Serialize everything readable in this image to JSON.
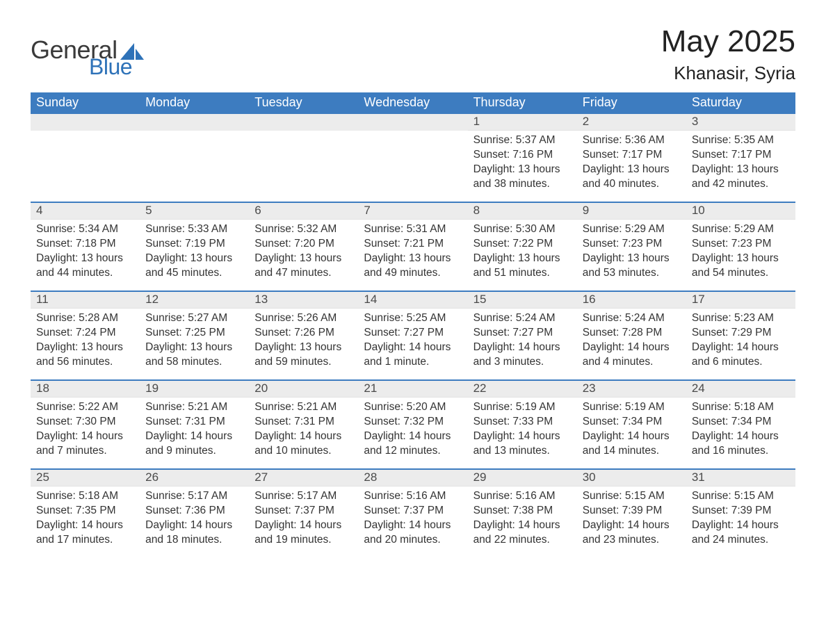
{
  "brand": {
    "word1": "General",
    "word2": "Blue",
    "text_color": "#3a3a3a",
    "accent_color": "#2e72b8"
  },
  "title": "May 2025",
  "location": "Khanasir, Syria",
  "colors": {
    "header_bg": "#3d7cc0",
    "header_text": "#ffffff",
    "daynum_bg": "#ececec",
    "daynum_text": "#4a4a4a",
    "body_text": "#333333",
    "week_divider": "#3d7cc0",
    "page_bg": "#ffffff"
  },
  "fonts": {
    "title_size_pt": 33,
    "location_size_pt": 20,
    "dow_size_pt": 14,
    "body_size_pt": 12
  },
  "days_of_week": [
    "Sunday",
    "Monday",
    "Tuesday",
    "Wednesday",
    "Thursday",
    "Friday",
    "Saturday"
  ],
  "weeks": [
    [
      null,
      null,
      null,
      null,
      {
        "n": "1",
        "sunrise": "Sunrise: 5:37 AM",
        "sunset": "Sunset: 7:16 PM",
        "daylight": "Daylight: 13 hours and 38 minutes."
      },
      {
        "n": "2",
        "sunrise": "Sunrise: 5:36 AM",
        "sunset": "Sunset: 7:17 PM",
        "daylight": "Daylight: 13 hours and 40 minutes."
      },
      {
        "n": "3",
        "sunrise": "Sunrise: 5:35 AM",
        "sunset": "Sunset: 7:17 PM",
        "daylight": "Daylight: 13 hours and 42 minutes."
      }
    ],
    [
      {
        "n": "4",
        "sunrise": "Sunrise: 5:34 AM",
        "sunset": "Sunset: 7:18 PM",
        "daylight": "Daylight: 13 hours and 44 minutes."
      },
      {
        "n": "5",
        "sunrise": "Sunrise: 5:33 AM",
        "sunset": "Sunset: 7:19 PM",
        "daylight": "Daylight: 13 hours and 45 minutes."
      },
      {
        "n": "6",
        "sunrise": "Sunrise: 5:32 AM",
        "sunset": "Sunset: 7:20 PM",
        "daylight": "Daylight: 13 hours and 47 minutes."
      },
      {
        "n": "7",
        "sunrise": "Sunrise: 5:31 AM",
        "sunset": "Sunset: 7:21 PM",
        "daylight": "Daylight: 13 hours and 49 minutes."
      },
      {
        "n": "8",
        "sunrise": "Sunrise: 5:30 AM",
        "sunset": "Sunset: 7:22 PM",
        "daylight": "Daylight: 13 hours and 51 minutes."
      },
      {
        "n": "9",
        "sunrise": "Sunrise: 5:29 AM",
        "sunset": "Sunset: 7:23 PM",
        "daylight": "Daylight: 13 hours and 53 minutes."
      },
      {
        "n": "10",
        "sunrise": "Sunrise: 5:29 AM",
        "sunset": "Sunset: 7:23 PM",
        "daylight": "Daylight: 13 hours and 54 minutes."
      }
    ],
    [
      {
        "n": "11",
        "sunrise": "Sunrise: 5:28 AM",
        "sunset": "Sunset: 7:24 PM",
        "daylight": "Daylight: 13 hours and 56 minutes."
      },
      {
        "n": "12",
        "sunrise": "Sunrise: 5:27 AM",
        "sunset": "Sunset: 7:25 PM",
        "daylight": "Daylight: 13 hours and 58 minutes."
      },
      {
        "n": "13",
        "sunrise": "Sunrise: 5:26 AM",
        "sunset": "Sunset: 7:26 PM",
        "daylight": "Daylight: 13 hours and 59 minutes."
      },
      {
        "n": "14",
        "sunrise": "Sunrise: 5:25 AM",
        "sunset": "Sunset: 7:27 PM",
        "daylight": "Daylight: 14 hours and 1 minute."
      },
      {
        "n": "15",
        "sunrise": "Sunrise: 5:24 AM",
        "sunset": "Sunset: 7:27 PM",
        "daylight": "Daylight: 14 hours and 3 minutes."
      },
      {
        "n": "16",
        "sunrise": "Sunrise: 5:24 AM",
        "sunset": "Sunset: 7:28 PM",
        "daylight": "Daylight: 14 hours and 4 minutes."
      },
      {
        "n": "17",
        "sunrise": "Sunrise: 5:23 AM",
        "sunset": "Sunset: 7:29 PM",
        "daylight": "Daylight: 14 hours and 6 minutes."
      }
    ],
    [
      {
        "n": "18",
        "sunrise": "Sunrise: 5:22 AM",
        "sunset": "Sunset: 7:30 PM",
        "daylight": "Daylight: 14 hours and 7 minutes."
      },
      {
        "n": "19",
        "sunrise": "Sunrise: 5:21 AM",
        "sunset": "Sunset: 7:31 PM",
        "daylight": "Daylight: 14 hours and 9 minutes."
      },
      {
        "n": "20",
        "sunrise": "Sunrise: 5:21 AM",
        "sunset": "Sunset: 7:31 PM",
        "daylight": "Daylight: 14 hours and 10 minutes."
      },
      {
        "n": "21",
        "sunrise": "Sunrise: 5:20 AM",
        "sunset": "Sunset: 7:32 PM",
        "daylight": "Daylight: 14 hours and 12 minutes."
      },
      {
        "n": "22",
        "sunrise": "Sunrise: 5:19 AM",
        "sunset": "Sunset: 7:33 PM",
        "daylight": "Daylight: 14 hours and 13 minutes."
      },
      {
        "n": "23",
        "sunrise": "Sunrise: 5:19 AM",
        "sunset": "Sunset: 7:34 PM",
        "daylight": "Daylight: 14 hours and 14 minutes."
      },
      {
        "n": "24",
        "sunrise": "Sunrise: 5:18 AM",
        "sunset": "Sunset: 7:34 PM",
        "daylight": "Daylight: 14 hours and 16 minutes."
      }
    ],
    [
      {
        "n": "25",
        "sunrise": "Sunrise: 5:18 AM",
        "sunset": "Sunset: 7:35 PM",
        "daylight": "Daylight: 14 hours and 17 minutes."
      },
      {
        "n": "26",
        "sunrise": "Sunrise: 5:17 AM",
        "sunset": "Sunset: 7:36 PM",
        "daylight": "Daylight: 14 hours and 18 minutes."
      },
      {
        "n": "27",
        "sunrise": "Sunrise: 5:17 AM",
        "sunset": "Sunset: 7:37 PM",
        "daylight": "Daylight: 14 hours and 19 minutes."
      },
      {
        "n": "28",
        "sunrise": "Sunrise: 5:16 AM",
        "sunset": "Sunset: 7:37 PM",
        "daylight": "Daylight: 14 hours and 20 minutes."
      },
      {
        "n": "29",
        "sunrise": "Sunrise: 5:16 AM",
        "sunset": "Sunset: 7:38 PM",
        "daylight": "Daylight: 14 hours and 22 minutes."
      },
      {
        "n": "30",
        "sunrise": "Sunrise: 5:15 AM",
        "sunset": "Sunset: 7:39 PM",
        "daylight": "Daylight: 14 hours and 23 minutes."
      },
      {
        "n": "31",
        "sunrise": "Sunrise: 5:15 AM",
        "sunset": "Sunset: 7:39 PM",
        "daylight": "Daylight: 14 hours and 24 minutes."
      }
    ]
  ]
}
